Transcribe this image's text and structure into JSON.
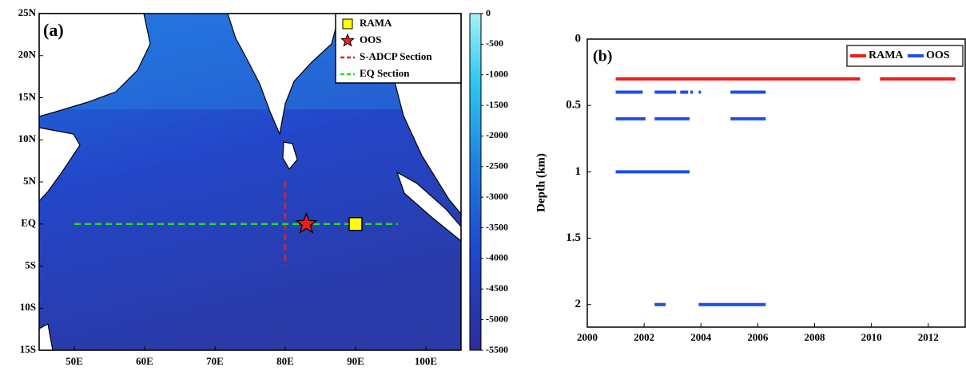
{
  "chart_data": [
    {
      "type": "map",
      "panel_label": "(a)",
      "xlim": [
        45,
        105
      ],
      "xticks": [
        {
          "value": 50,
          "label": "50E"
        },
        {
          "value": 60,
          "label": "60E"
        },
        {
          "value": 70,
          "label": "70E"
        },
        {
          "value": 80,
          "label": "80E"
        },
        {
          "value": 90,
          "label": "90E"
        },
        {
          "value": 100,
          "label": "100E"
        }
      ],
      "ylim": [
        -15,
        25
      ],
      "yticks": [
        {
          "value": -15,
          "label": "15S"
        },
        {
          "value": -10,
          "label": "10S"
        },
        {
          "value": -5,
          "label": "5S"
        },
        {
          "value": 0,
          "label": "EQ"
        },
        {
          "value": 5,
          "label": "5N"
        },
        {
          "value": 10,
          "label": "10N"
        },
        {
          "value": 15,
          "label": "15N"
        },
        {
          "value": 20,
          "label": "20N"
        },
        {
          "value": 25,
          "label": "25N"
        }
      ],
      "colorbar_lim": [
        -5500,
        0
      ],
      "colorbar_ticks": [
        0,
        -500,
        -1000,
        -1500,
        -2000,
        -2500,
        -3000,
        -3500,
        -4000,
        -4500,
        -5000,
        -5500
      ],
      "series": [
        {
          "name": "RAMA",
          "marker": "square",
          "color": "#ffff00",
          "x": [
            90
          ],
          "y": [
            0
          ]
        },
        {
          "name": "OOS",
          "marker": "star",
          "color": "#ee1c1c",
          "x": [
            83
          ],
          "y": [
            0
          ]
        },
        {
          "name": "S-ADCP Section",
          "marker": "dashed-line",
          "color": "#ee1c1c",
          "x": [
            80,
            80
          ],
          "y": [
            5,
            -5
          ]
        },
        {
          "name": "EQ Section",
          "marker": "dashed-line",
          "color": "#22dd22",
          "x": [
            50,
            96
          ],
          "y": [
            0,
            0
          ]
        }
      ]
    },
    {
      "type": "timeline",
      "panel_label": "(b)",
      "ylabel": "Depth (km)",
      "xlim": [
        2000,
        2013.3
      ],
      "xticks": [
        2000,
        2002,
        2004,
        2006,
        2008,
        2010,
        2012
      ],
      "ylim": [
        0,
        2.17
      ],
      "yticks": [
        0,
        0.5,
        1,
        1.5,
        2
      ],
      "y_inverted": true,
      "series": [
        {
          "name": "RAMA",
          "color": "#ee1c1c",
          "segments": [
            {
              "depth": 0.3,
              "start": 2001.0,
              "end": 2009.6
            },
            {
              "depth": 0.3,
              "start": 2010.3,
              "end": 2012.95
            }
          ]
        },
        {
          "name": "OOS",
          "color": "#1a4fe8",
          "segments": [
            {
              "depth": 0.4,
              "start": 2001.0,
              "end": 2001.95
            },
            {
              "depth": 0.4,
              "start": 2002.37,
              "end": 2003.13
            },
            {
              "depth": 0.4,
              "start": 2003.27,
              "end": 2003.55
            },
            {
              "depth": 0.4,
              "start": 2003.63,
              "end": 2003.72
            },
            {
              "depth": 0.4,
              "start": 2003.92,
              "end": 2004.0
            },
            {
              "depth": 0.4,
              "start": 2005.04,
              "end": 2006.28
            },
            {
              "depth": 0.6,
              "start": 2001.0,
              "end": 2002.05
            },
            {
              "depth": 0.6,
              "start": 2002.37,
              "end": 2003.6
            },
            {
              "depth": 0.6,
              "start": 2005.04,
              "end": 2006.28
            },
            {
              "depth": 1,
              "start": 2001.0,
              "end": 2003.6
            },
            {
              "depth": 2,
              "start": 2002.37,
              "end": 2002.76
            },
            {
              "depth": 2,
              "start": 2003.92,
              "end": 2006.28
            }
          ]
        }
      ]
    }
  ]
}
